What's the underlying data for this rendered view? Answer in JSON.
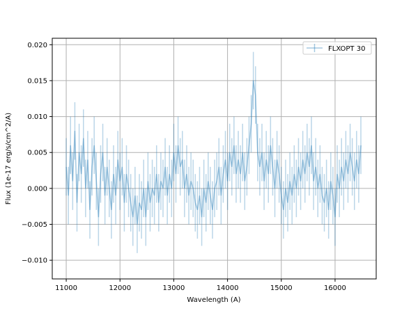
{
  "chart_data": {
    "type": "line",
    "style": "errorbar",
    "title": "",
    "xlabel": "Wavelength (A)",
    "ylabel": "Flux (1e-17 erg/s/cm^2/A)",
    "xlim": [
      10740,
      16765
    ],
    "ylim": [
      -0.0126,
      0.0209
    ],
    "grid": true,
    "legend": {
      "placement": "top-right",
      "entries": [
        "FLXOPT 30"
      ]
    },
    "color": "#1f77b4",
    "xticks": [
      11000,
      12000,
      13000,
      14000,
      15000,
      16000
    ],
    "yticks": [
      -0.01,
      -0.005,
      0.0,
      0.005,
      0.01,
      0.015,
      0.02
    ],
    "xtick_labels": [
      "11000",
      "12000",
      "13000",
      "14000",
      "15000",
      "16000"
    ],
    "ytick_labels": [
      "−0.010",
      "−0.005",
      "0.000",
      "0.005",
      "0.010",
      "0.015",
      "0.020"
    ],
    "series": [
      {
        "name": "FLXOPT 30",
        "x_start": 11000,
        "x_step": 40,
        "yerr": 0.004,
        "values": [
          0.003,
          -0.001,
          0.006,
          0.001,
          0.008,
          -0.002,
          0.005,
          0.002,
          0.007,
          0.0,
          0.004,
          -0.003,
          0.003,
          0.006,
          0.001,
          -0.004,
          0.002,
          0.005,
          -0.001,
          0.003,
          0.0,
          -0.003,
          0.002,
          -0.001,
          0.004,
          0.001,
          0.003,
          -0.002,
          0.002,
          0.0,
          -0.002,
          -0.004,
          -0.001,
          -0.005,
          -0.002,
          -0.003,
          0.0,
          -0.004,
          0.001,
          -0.002,
          0.0,
          -0.001,
          0.002,
          -0.002,
          0.001,
          0.0,
          0.003,
          -0.001,
          0.002,
          0.0,
          0.005,
          0.002,
          0.006,
          0.003,
          0.004,
          0.0,
          0.002,
          -0.001,
          0.001,
          0.0,
          -0.002,
          -0.003,
          -0.001,
          -0.004,
          0.0,
          -0.002,
          0.001,
          -0.001,
          -0.003,
          0.0,
          0.001,
          0.003,
          -0.001,
          0.002,
          0.004,
          0.001,
          0.005,
          0.003,
          0.006,
          0.002,
          0.004,
          0.002,
          0.005,
          0.001,
          0.003,
          0.006,
          0.009,
          0.015,
          0.013,
          0.005,
          0.003,
          0.005,
          0.001,
          0.004,
          0.002,
          0.006,
          0.003,
          0.0,
          0.004,
          0.002,
          -0.001,
          -0.003,
          0.0,
          -0.002,
          0.001,
          -0.001,
          0.002,
          0.0,
          0.003,
          0.001,
          0.004,
          0.002,
          0.005,
          0.003,
          0.006,
          0.001,
          0.003,
          0.0,
          0.002,
          -0.001,
          -0.002,
          0.0,
          -0.003,
          0.001,
          -0.001,
          -0.004,
          0.002,
          0.0,
          0.003,
          0.001,
          0.004,
          0.002,
          0.005,
          0.003,
          0.001,
          0.004,
          0.002,
          0.006
        ]
      }
    ]
  }
}
